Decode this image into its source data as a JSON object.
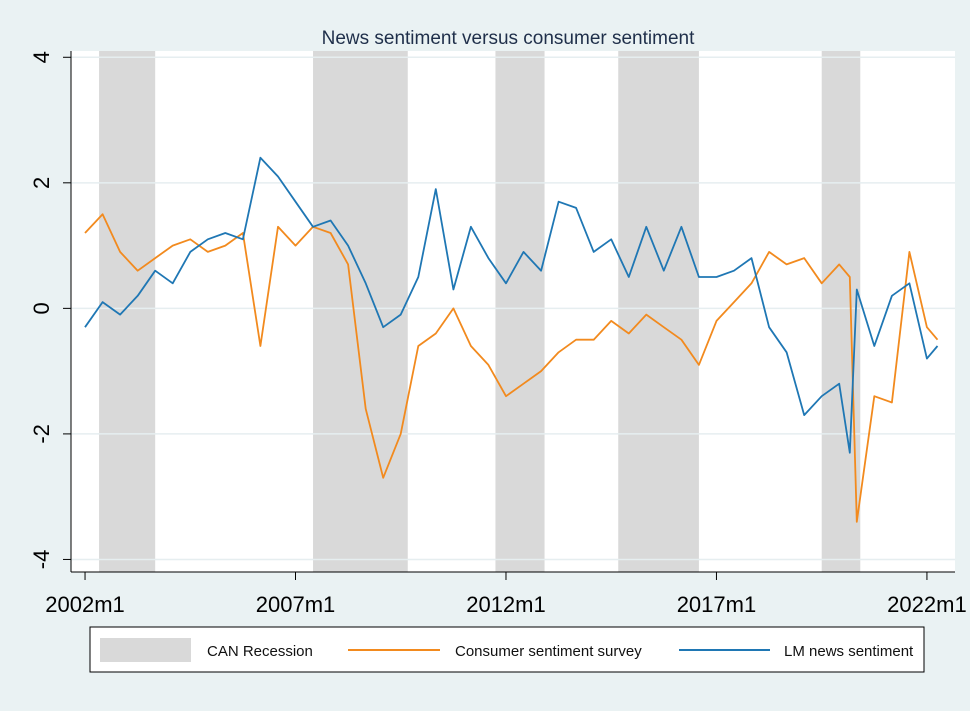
{
  "chart_data": {
    "type": "line",
    "title": "News sentiment versus consumer sentiment",
    "xlabel": "",
    "ylabel": "",
    "x_ticks": [
      "2002m1",
      "2007m1",
      "2012m1",
      "2017m1",
      "2022m1"
    ],
    "y_ticks": [
      -4,
      -2,
      0,
      2,
      4
    ],
    "ylim": [
      -4.2,
      4.1
    ],
    "xlim": [
      "2001m9",
      "2022m9"
    ],
    "grid": true,
    "legend_position": "bottom",
    "recessions": [
      [
        "2002m5",
        "2003m9"
      ],
      [
        "2007m6",
        "2009m9"
      ],
      [
        "2011m10",
        "2012m12"
      ],
      [
        "2014m9",
        "2016m8"
      ],
      [
        "2019m7",
        "2020m6"
      ]
    ],
    "legend": [
      {
        "label": "CAN Recession",
        "kind": "area",
        "color": "#d9d9d9"
      },
      {
        "label": "Consumer sentiment survey",
        "kind": "line",
        "color": "#f28a1e"
      },
      {
        "label": "LM news sentiment",
        "kind": "line",
        "color": "#1f77b4"
      }
    ],
    "series": [
      {
        "name": "Consumer sentiment survey",
        "color": "#f28a1e",
        "x": [
          "2002m1",
          "2002m6",
          "2002m11",
          "2003m4",
          "2003m9",
          "2004m2",
          "2004m7",
          "2004m12",
          "2005m5",
          "2005m10",
          "2006m3",
          "2006m8",
          "2007m1",
          "2007m6",
          "2007m11",
          "2008m4",
          "2008m9",
          "2009m2",
          "2009m7",
          "2009m12",
          "2010m5",
          "2010m10",
          "2011m3",
          "2011m8",
          "2012m1",
          "2012m6",
          "2012m11",
          "2013m4",
          "2013m9",
          "2014m2",
          "2014m7",
          "2014m12",
          "2015m5",
          "2015m10",
          "2016m3",
          "2016m8",
          "2017m1",
          "2017m6",
          "2017m11",
          "2018m4",
          "2018m9",
          "2019m2",
          "2019m7",
          "2019m12",
          "2020m3",
          "2020m5",
          "2020m10",
          "2021m3",
          "2021m8",
          "2022m1",
          "2022m4"
        ],
        "values": [
          1.2,
          1.5,
          0.9,
          0.6,
          0.8,
          1.0,
          1.1,
          0.9,
          1.0,
          1.2,
          -0.6,
          1.3,
          1.0,
          1.3,
          1.2,
          0.7,
          -1.6,
          -2.7,
          -2.0,
          -0.6,
          -0.4,
          0.0,
          -0.6,
          -0.9,
          -1.4,
          -1.2,
          -1.0,
          -0.7,
          -0.5,
          -0.5,
          -0.2,
          -0.4,
          -0.1,
          -0.3,
          -0.5,
          -0.9,
          -0.2,
          0.1,
          0.4,
          0.9,
          0.7,
          0.8,
          0.4,
          0.7,
          0.5,
          -3.4,
          -1.4,
          -1.5,
          0.9,
          -0.3,
          -0.5
        ]
      },
      {
        "name": "LM news sentiment",
        "color": "#1f77b4",
        "x": [
          "2002m1",
          "2002m6",
          "2002m11",
          "2003m4",
          "2003m9",
          "2004m2",
          "2004m7",
          "2004m12",
          "2005m5",
          "2005m10",
          "2006m3",
          "2006m8",
          "2007m1",
          "2007m6",
          "2007m11",
          "2008m4",
          "2008m9",
          "2009m2",
          "2009m7",
          "2009m12",
          "2010m5",
          "2010m10",
          "2011m3",
          "2011m8",
          "2012m1",
          "2012m6",
          "2012m11",
          "2013m4",
          "2013m9",
          "2014m2",
          "2014m7",
          "2014m12",
          "2015m5",
          "2015m10",
          "2016m3",
          "2016m8",
          "2017m1",
          "2017m6",
          "2017m11",
          "2018m4",
          "2018m9",
          "2019m2",
          "2019m7",
          "2019m12",
          "2020m3",
          "2020m5",
          "2020m10",
          "2021m3",
          "2021m8",
          "2022m1",
          "2022m4"
        ],
        "values": [
          -0.3,
          0.1,
          -0.1,
          0.2,
          0.6,
          0.4,
          0.9,
          1.1,
          1.2,
          1.1,
          2.4,
          2.1,
          1.7,
          1.3,
          1.4,
          1.0,
          0.4,
          -0.3,
          -0.1,
          0.5,
          1.9,
          0.3,
          1.3,
          0.8,
          0.4,
          0.9,
          0.6,
          1.7,
          1.6,
          0.9,
          1.1,
          0.5,
          1.3,
          0.6,
          1.3,
          0.5,
          0.5,
          0.6,
          0.8,
          -0.3,
          -0.7,
          -1.7,
          -1.4,
          -1.2,
          -2.3,
          0.3,
          -0.6,
          0.2,
          0.4,
          -0.8,
          -0.6
        ]
      }
    ]
  }
}
